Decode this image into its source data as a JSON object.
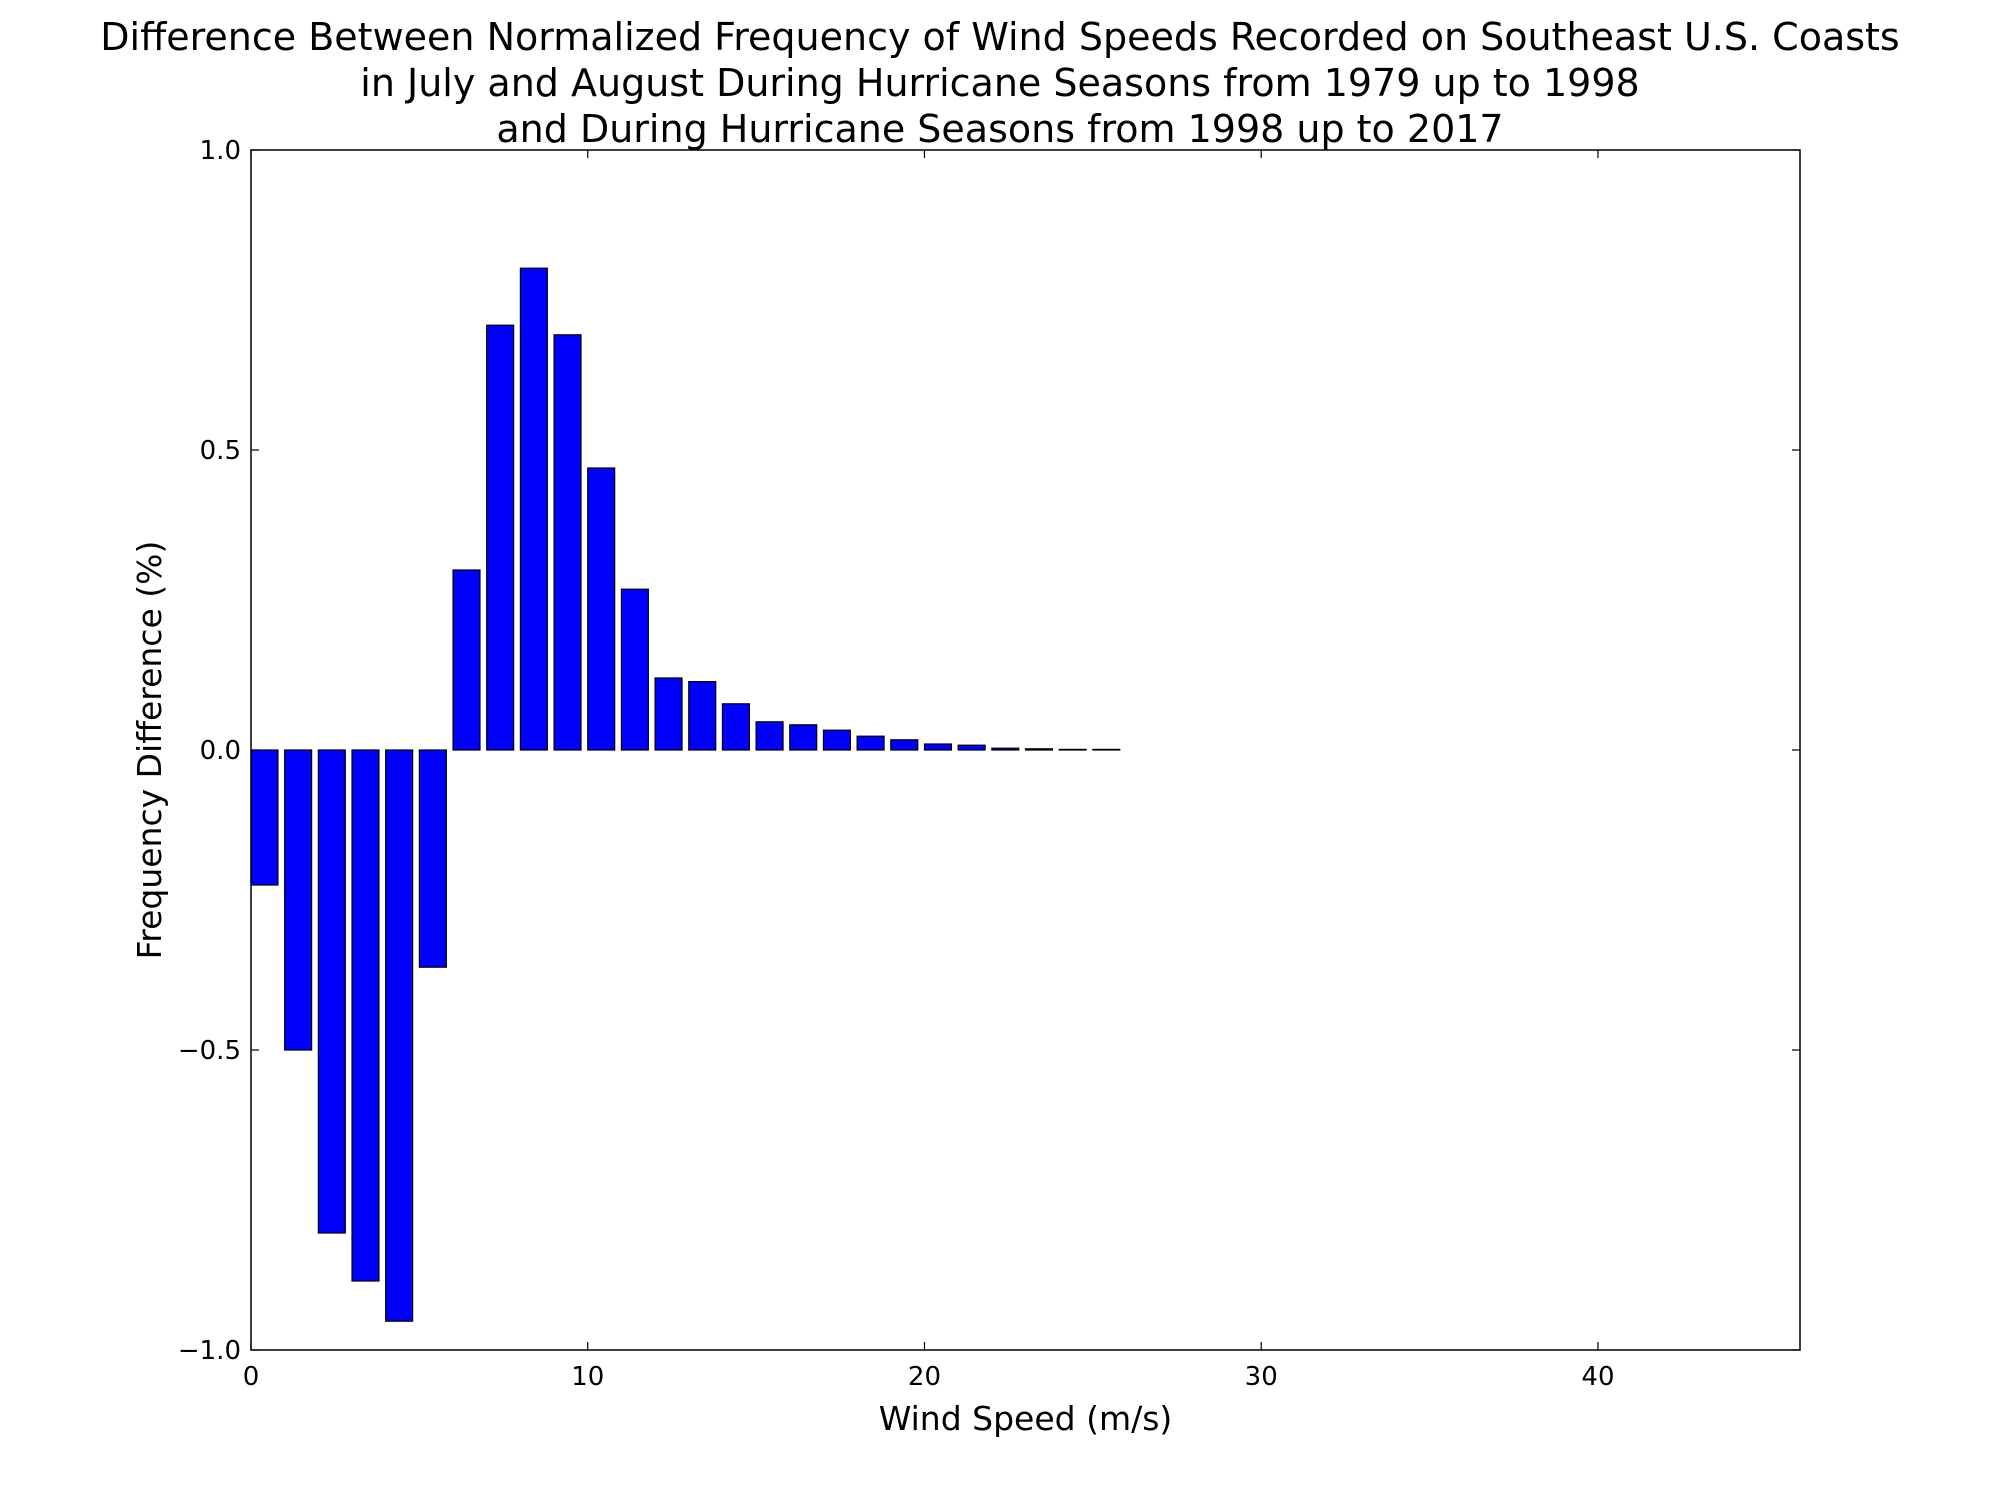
{
  "chart_data": {
    "type": "bar",
    "title_lines": [
      "Difference Between Normalized Frequency of Wind Speeds Recorded on Southeast U.S. Coasts",
      "in July and August During Hurricane Seasons from 1979 up to 1998",
      "and During Hurricane Seasons from 1998 up to 2017"
    ],
    "xlabel": "Wind Speed (m/s)",
    "ylabel": "Frequency Difference (%)",
    "xlim": [
      0,
      46
    ],
    "ylim": [
      -1.0,
      1.0
    ],
    "x_ticks": [
      0,
      10,
      20,
      30,
      40
    ],
    "x_tick_labels": [
      "0",
      "10",
      "20",
      "30",
      "40"
    ],
    "y_ticks": [
      -1.0,
      -0.5,
      0.0,
      0.5,
      1.0
    ],
    "y_tick_labels": [
      "−1.0",
      "−0.5",
      "0.0",
      "0.5",
      "1.0"
    ],
    "grid": false,
    "bar_color": "#0000ff",
    "bar_edge_color": "#000000",
    "bar_width": 0.8,
    "x": [
      0,
      1,
      2,
      3,
      4,
      5,
      6,
      7,
      8,
      9,
      10,
      11,
      12,
      13,
      14,
      15,
      16,
      17,
      18,
      19,
      20,
      21,
      22,
      23,
      24,
      25,
      26,
      27,
      28,
      29,
      30,
      31,
      32,
      33,
      34,
      35,
      36,
      37,
      38,
      39,
      40,
      41,
      42,
      43,
      44
    ],
    "values": [
      -0.225,
      -0.5,
      -0.805,
      -0.885,
      -0.952,
      -0.362,
      0.3,
      0.708,
      0.803,
      0.692,
      0.47,
      0.268,
      0.12,
      0.114,
      0.077,
      0.047,
      0.042,
      0.033,
      0.023,
      0.017,
      0.01,
      0.008,
      0.003,
      0.002,
      0.001,
      0.001,
      0.0,
      0.0,
      0.0,
      0.0,
      0.0,
      0.0,
      0.0,
      0.0,
      0.0,
      0.0,
      0.0,
      0.0,
      0.0,
      0.0,
      0.0,
      0.0,
      0.0,
      0.0,
      0.0
    ]
  }
}
